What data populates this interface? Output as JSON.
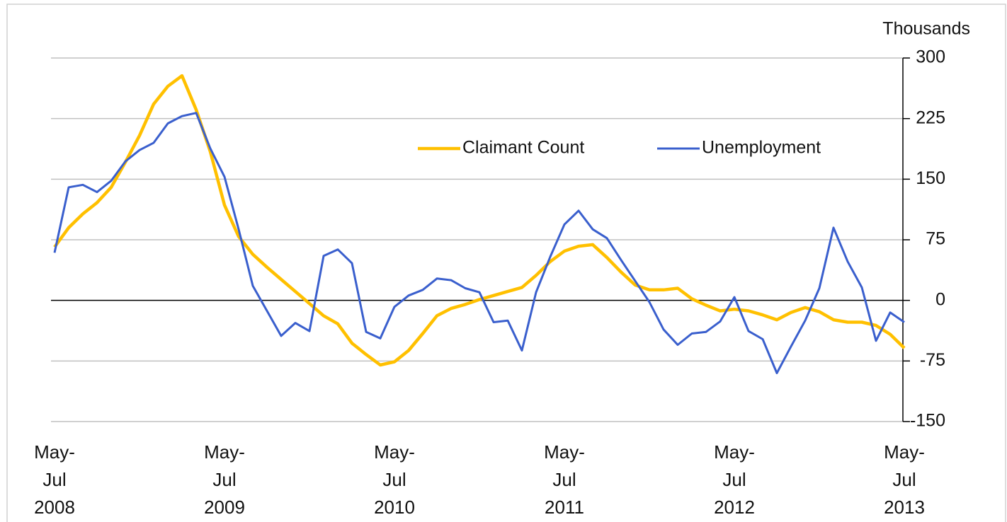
{
  "chart_data": {
    "type": "line",
    "y_axis_label": "Thousands",
    "categories": [
      "May-\nJul\n2008",
      null,
      null,
      null,
      null,
      null,
      null,
      null,
      null,
      null,
      null,
      null,
      "May-\nJul\n2009",
      null,
      null,
      null,
      null,
      null,
      null,
      null,
      null,
      null,
      null,
      null,
      "May-\nJul\n2010",
      null,
      null,
      null,
      null,
      null,
      null,
      null,
      null,
      null,
      null,
      null,
      "May-\nJul\n2011",
      null,
      null,
      null,
      null,
      null,
      null,
      null,
      null,
      null,
      null,
      null,
      "May-\nJul\n2012",
      null,
      null,
      null,
      null,
      null,
      null,
      null,
      null,
      null,
      null,
      null,
      "May-\nJul\n2013"
    ],
    "series": [
      {
        "name": "Claimant Count",
        "color": "#ffc000",
        "values": [
          66,
          90,
          107,
          121,
          140,
          171,
          204,
          243,
          265,
          278,
          236,
          184,
          118,
          79,
          57,
          41,
          26,
          11,
          -4,
          -19,
          -29,
          -53,
          -67,
          -80,
          -76,
          -62,
          -41,
          -19,
          -10,
          -5,
          1,
          6,
          11,
          16,
          31,
          48,
          61,
          67,
          69,
          53,
          35,
          19,
          13,
          13,
          15,
          2,
          -6,
          -13,
          -11,
          -13,
          -18,
          -24,
          -15,
          -9,
          -14,
          -24,
          -27,
          -27,
          -31,
          -42,
          -59
        ]
      },
      {
        "name": "Unemployment",
        "color": "#3a5fcd",
        "values": [
          59,
          140,
          143,
          134,
          148,
          172,
          186,
          195,
          219,
          228,
          232,
          188,
          153,
          88,
          18,
          -13,
          -44,
          -28,
          -38,
          55,
          63,
          46,
          -39,
          -47,
          -8,
          6,
          13,
          27,
          25,
          15,
          10,
          -27,
          -25,
          -62,
          10,
          54,
          94,
          111,
          88,
          77,
          50,
          24,
          -2,
          -36,
          -55,
          -41,
          -39,
          -26,
          4,
          -38,
          -48,
          -90,
          -57,
          -25,
          15,
          90,
          48,
          16,
          -50,
          -15,
          -27
        ]
      }
    ],
    "ylim": [
      -150,
      300
    ],
    "yticks": [
      -150,
      -75,
      0,
      75,
      150,
      225,
      300
    ],
    "grid": true,
    "legend": "top"
  }
}
